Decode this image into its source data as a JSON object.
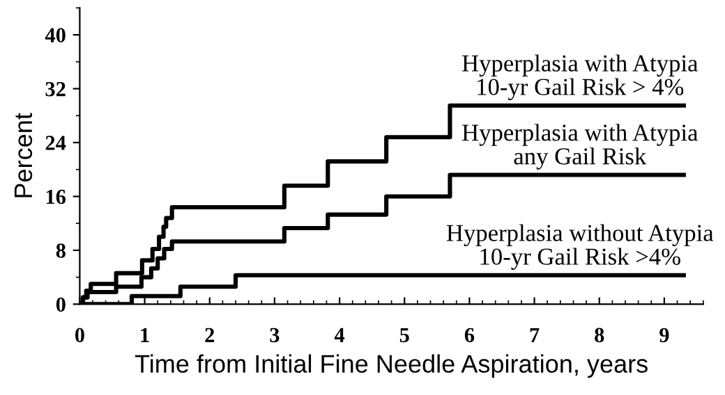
{
  "chart_data": {
    "type": "step",
    "xlabel": "Time from Initial Fine Needle Aspiration, years",
    "ylabel": "Percent",
    "xlim": [
      0,
      9.6
    ],
    "ylim": [
      0,
      44
    ],
    "xticks": [
      0,
      1,
      2,
      3,
      4,
      5,
      6,
      7,
      8,
      9
    ],
    "yticks": [
      0,
      8,
      16,
      24,
      32,
      40
    ],
    "grid": false,
    "legend": false,
    "marker": "none",
    "line_style": "solid",
    "series": [
      {
        "name": "Hyperplasia with Atypia\n10-yr Gail Risk > 4%",
        "color": "#000000",
        "x": [
          0,
          0.05,
          0.1,
          0.17,
          0.56,
          0.96,
          1.12,
          1.22,
          1.29,
          1.33,
          1.42,
          3.15,
          3.82,
          4.72,
          5.7,
          9.3
        ],
        "values": [
          0,
          1,
          2,
          3,
          4.6,
          6.5,
          8.2,
          10,
          11.5,
          12.8,
          14.4,
          17.6,
          21.2,
          24.8,
          29.5,
          29.5
        ]
      },
      {
        "name": "Hyperplasia with Atypia\nany Gail Risk",
        "color": "#000000",
        "x": [
          0,
          0.05,
          0.12,
          0.56,
          0.95,
          1.1,
          1.2,
          1.3,
          1.42,
          3.15,
          3.82,
          4.72,
          5.7,
          9.3
        ],
        "values": [
          0,
          1,
          1.8,
          2.6,
          4,
          5.3,
          6.8,
          8.2,
          9.3,
          11.3,
          13.3,
          16,
          19.2,
          19.2
        ]
      },
      {
        "name": "Hyperplasia without Atypia\n10-yr Gail Risk >4%",
        "color": "#000000",
        "x": [
          0,
          0.8,
          1.55,
          2.4,
          9.3
        ],
        "values": [
          0,
          1.2,
          2.6,
          4.3,
          4.3
        ]
      }
    ]
  }
}
